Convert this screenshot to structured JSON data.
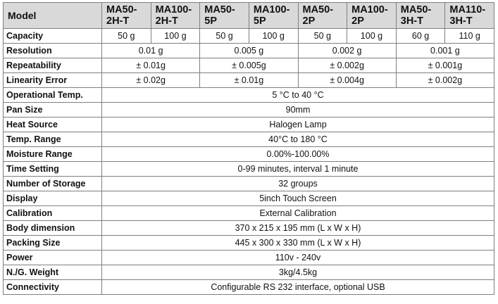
{
  "header": [
    "Model",
    "MA50-2H-T",
    "MA100-2H-T",
    "MA50-5P",
    "MA100-5P",
    "MA50-2P",
    "MA100-2P",
    "MA50-3H-T",
    "MA110-3H-T"
  ],
  "rows": [
    {
      "label": "Capacity",
      "cells": [
        "50 g",
        "100 g",
        "50 g",
        "100 g",
        "50 g",
        "100 g",
        "60 g",
        "110 g"
      ]
    },
    {
      "label": "Resolution",
      "cells": [
        "0.01 g",
        "0.005 g",
        "0.002 g",
        "0.001 g"
      ]
    },
    {
      "label": "Repeatability",
      "cells": [
        "± 0.01g",
        "± 0.005g",
        "± 0.002g",
        "± 0.001g"
      ]
    },
    {
      "label": "Linearity Error",
      "cells": [
        "± 0.02g",
        "± 0.01g",
        "± 0.004g",
        "± 0.002g"
      ]
    },
    {
      "label": "Operational Temp.",
      "cells": [
        "5 °C to 40 °C"
      ]
    },
    {
      "label": "Pan Size",
      "cells": [
        "90mm"
      ]
    },
    {
      "label": "Heat Source",
      "cells": [
        "Halogen Lamp"
      ]
    },
    {
      "label": "Temp. Range",
      "cells": [
        "40°C to 180 °C"
      ]
    },
    {
      "label": "Moisture Range",
      "cells": [
        "0.00%-100.00%"
      ]
    },
    {
      "label": "Time Setting",
      "cells": [
        "0-99 minutes, interval 1 minute"
      ]
    },
    {
      "label": "Number of Storage",
      "cells": [
        "32 groups"
      ]
    },
    {
      "label": "Display",
      "cells": [
        "5inch Touch Screen"
      ]
    },
    {
      "label": "Calibration",
      "cells": [
        "External Calibration"
      ]
    },
    {
      "label": "Body dimension",
      "cells": [
        "370 x 215 x 195 mm (L x W x H)"
      ]
    },
    {
      "label": "Packing Size",
      "cells": [
        "445 x 300 x 330 mm (L x W x H)"
      ]
    },
    {
      "label": "Power",
      "cells": [
        "110v - 240v"
      ]
    },
    {
      "label": "N./G. Weight",
      "cells": [
        "3kg/4.5kg"
      ]
    },
    {
      "label": "Connectivity",
      "cells": [
        "Configurable RS 232 interface, optional USB"
      ]
    }
  ]
}
